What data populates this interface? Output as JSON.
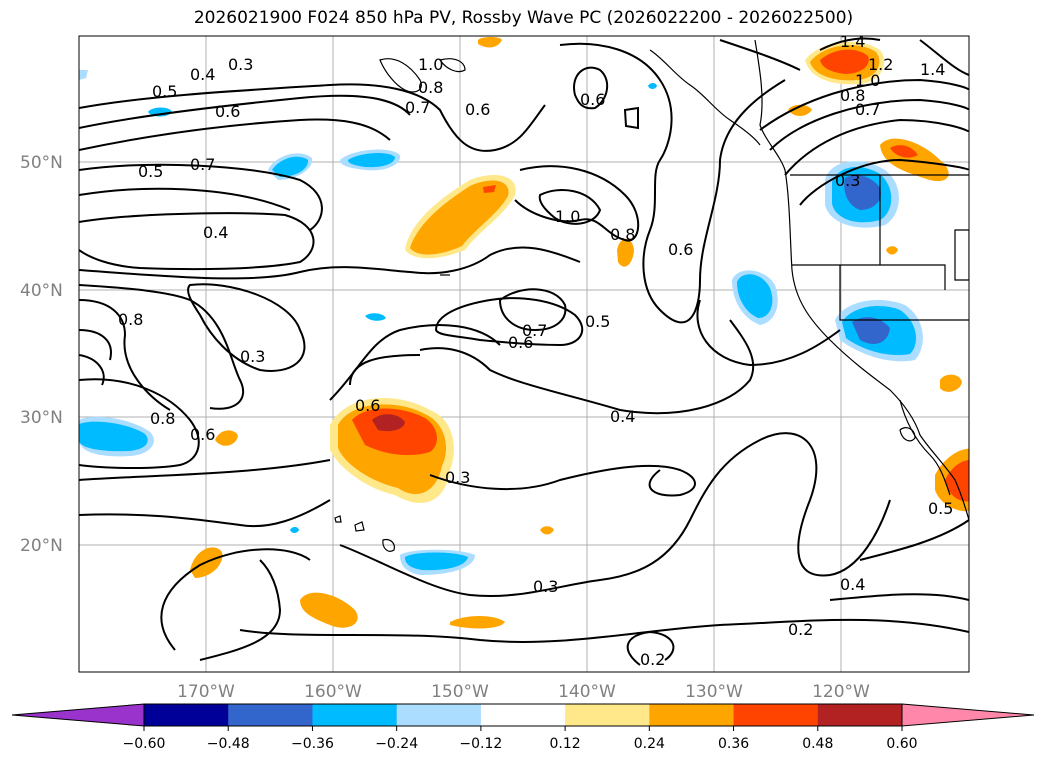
{
  "title": "2026021900 F024 850 hPa PV, Rossby Wave PC (2026022200 - 2026022500)",
  "lon_labels": [
    "170°W",
    "160°W",
    "150°W",
    "140°W",
    "130°W",
    "120°W"
  ],
  "lat_labels": [
    "50°N",
    "40°N",
    "30°N",
    "20°N"
  ],
  "colorbar": {
    "ticks": [
      "−0.60",
      "−0.48",
      "−0.36",
      "−0.24",
      "−0.12",
      "0.12",
      "0.24",
      "0.36",
      "0.48",
      "0.60"
    ],
    "colors": [
      "#9933cc",
      "#000099",
      "#3366cc",
      "#00bbff",
      "#aaddff",
      "#ffffff",
      "#ffe88a",
      "#ffa500",
      "#ff4400",
      "#b22222",
      "#ff88aa"
    ]
  },
  "contour_labels": [
    "0.3",
    "0.4",
    "0.5",
    "0.6",
    "1.0",
    "0.8",
    "0.7",
    "0.6",
    "1.4",
    "1.2",
    "1.0",
    "1.4",
    "0.8",
    "0.7",
    "0.5",
    "0.7",
    "0.4",
    "0.6",
    "1.0",
    "0.8",
    "0.6",
    "0.3",
    "0.8",
    "0.3",
    "0.7",
    "0.6",
    "0.5",
    "0.6",
    "0.8",
    "0.6",
    "0.4",
    "0.3",
    "0.3",
    "0.5",
    "0.4",
    "0.2",
    "0.2"
  ]
}
